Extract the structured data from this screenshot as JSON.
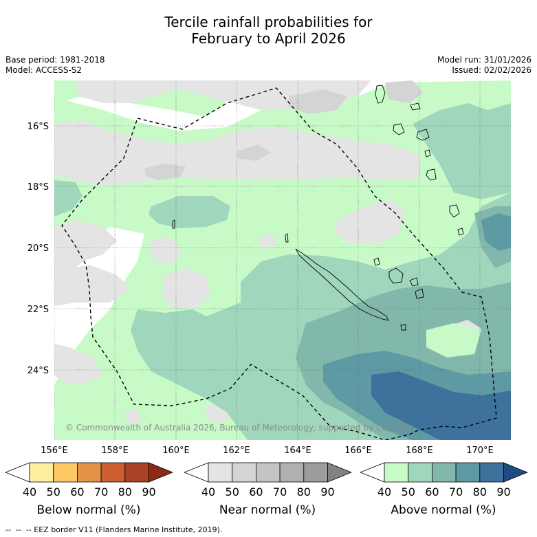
{
  "title": {
    "line1": "Tercile rainfall probabilities for",
    "line2": "February to April 2026"
  },
  "meta": {
    "base_period": "Base period: 1981-2018",
    "model": "Model: ACCESS-S2",
    "model_run": "Model run: 31/01/2026",
    "issued": "Issued: 02/02/2026"
  },
  "map": {
    "copyright": "© Commonwealth of Australia 2026, Bureau of Meteorology, supported by COSPPac",
    "lat_labels": [
      "16°S",
      "18°S",
      "20°S",
      "22°S",
      "24°S"
    ],
    "lon_labels": [
      "156°E",
      "158°E",
      "160°E",
      "162°E",
      "164°E",
      "166°E",
      "168°E",
      "170°E"
    ],
    "extent": {
      "lon": [
        155.95,
        171
      ],
      "lat": [
        -26.2,
        -14.4
      ]
    },
    "colors": {
      "near_40": "#e4e4e4",
      "near_50": "#d4d4d4",
      "above_40": "#c8fac8",
      "above_50": "#a0d6bc",
      "above_60": "#82b8ab",
      "above_70": "#5e9aa4",
      "above_80": "#3e719c"
    }
  },
  "colorbars": [
    {
      "label": "Below normal (%)",
      "ticks": [
        "40",
        "50",
        "60",
        "70",
        "80",
        "90"
      ],
      "colors": [
        "#ffffff",
        "#fdeea0",
        "#fcc864",
        "#e49348",
        "#cc5e30",
        "#aa4024",
        "#8c2a18"
      ]
    },
    {
      "label": "Near normal (%)",
      "ticks": [
        "40",
        "50",
        "60",
        "70",
        "80",
        "90"
      ],
      "colors": [
        "#ffffff",
        "#e4e4e4",
        "#d4d4d4",
        "#c4c4c4",
        "#b0b0b0",
        "#9c9c9c",
        "#828282"
      ]
    },
    {
      "label": "Above normal (%)",
      "ticks": [
        "40",
        "50",
        "60",
        "70",
        "80",
        "90"
      ],
      "colors": [
        "#ffffff",
        "#c8fac8",
        "#a0d6bc",
        "#82b8ab",
        "#5e9aa4",
        "#3e719c",
        "#1f4b84"
      ]
    }
  ],
  "footer": "--  --  -- EEZ border V11 (Flanders Marine Institute, 2019)."
}
